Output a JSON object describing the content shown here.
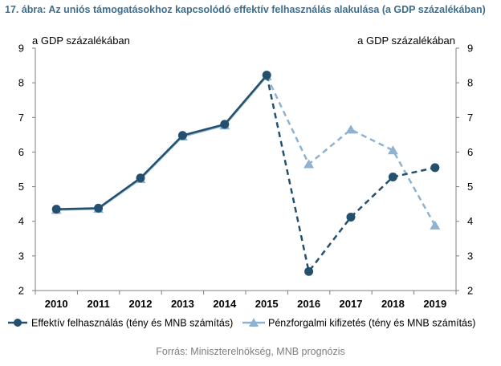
{
  "figure_title": "17. ábra: Az uniós támogatásokhoz kapcsolódó effektív felhasználás alakulása (a GDP százalékában)",
  "source": "Forrás: Miniszterelnökség, MNB prognózis",
  "colors": {
    "series_dark": "#23506e",
    "series_light": "#8eb3d2",
    "title": "#3f6e8c",
    "axis": "#7f7f7f",
    "grid": "#d9d9d9"
  },
  "chart_data": {
    "type": "line",
    "left_axis_label": "a GDP százalékában",
    "right_axis_label": "a GDP százalékában",
    "categories": [
      "2010",
      "2011",
      "2012",
      "2013",
      "2014",
      "2015",
      "2016",
      "2017",
      "2018",
      "2019"
    ],
    "ylim": [
      2,
      9
    ],
    "yticks": [
      2,
      3,
      4,
      5,
      6,
      7,
      8,
      9
    ],
    "grid": false,
    "legend_position": "bottom",
    "series": [
      {
        "name": "Effektív felhasználás (tény és MNB számítás)",
        "marker": "circle",
        "color": "#23506e",
        "values": [
          4.35,
          4.38,
          5.25,
          6.48,
          6.8,
          8.22,
          2.55,
          4.12,
          5.28,
          5.55
        ],
        "solid_until_index": 6
      },
      {
        "name": "Pénzforgalmi kifizetés (tény és MNB számítás)",
        "marker": "triangle",
        "color": "#8eb3d2",
        "values": [
          4.33,
          4.36,
          5.22,
          6.45,
          6.77,
          8.19,
          5.65,
          6.65,
          6.05,
          3.88
        ],
        "solid_until_index": 6
      }
    ]
  }
}
